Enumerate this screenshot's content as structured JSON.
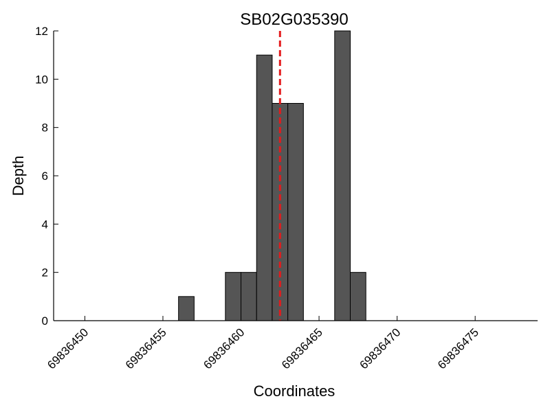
{
  "chart_data": {
    "type": "bar",
    "title": "SB02G035390",
    "xlabel": "Coordinates",
    "ylabel": "Depth",
    "xlim": [
      69836448,
      69836479
    ],
    "ylim": [
      0,
      12
    ],
    "x_ticks": [
      69836450,
      69836455,
      69836460,
      69836465,
      69836470,
      69836475
    ],
    "y_ticks": [
      0,
      2,
      4,
      6,
      8,
      10,
      12
    ],
    "bin_width": 1,
    "bars": [
      {
        "x": 69836456,
        "value": 1
      },
      {
        "x": 69836459,
        "value": 2
      },
      {
        "x": 69836460,
        "value": 2
      },
      {
        "x": 69836461,
        "value": 11
      },
      {
        "x": 69836462,
        "value": 9
      },
      {
        "x": 69836463,
        "value": 9
      },
      {
        "x": 69836466,
        "value": 12
      },
      {
        "x": 69836467,
        "value": 2
      }
    ],
    "marker_line": {
      "x": 69836462.5,
      "color": "#e41a1c",
      "style": "dashed"
    },
    "bar_color": "#555555",
    "grid": false,
    "legend": "none"
  }
}
